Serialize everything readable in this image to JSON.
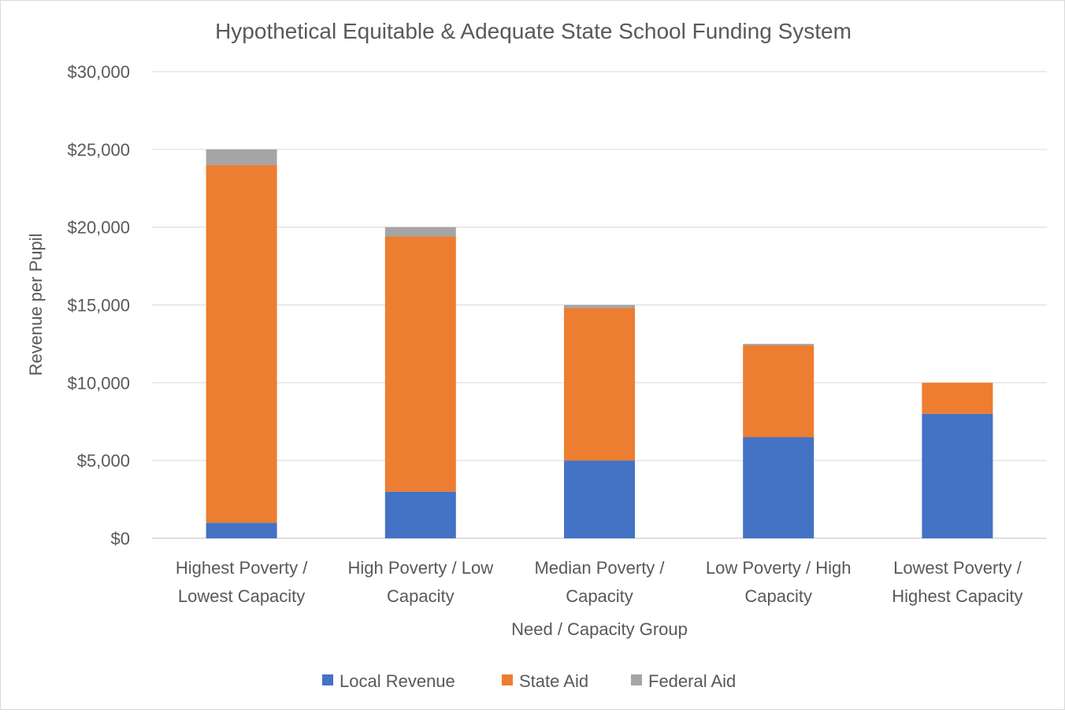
{
  "chart_data": {
    "type": "bar",
    "stacked": true,
    "title": "Hypothetical Equitable & Adequate State School Funding System",
    "xlabel": "Need / Capacity Group",
    "ylabel": "Revenue per Pupil",
    "ylim": [
      0,
      30000
    ],
    "yticks": [
      0,
      5000,
      10000,
      15000,
      20000,
      25000,
      30000
    ],
    "ytick_labels": [
      "$0",
      "$5,000",
      "$10,000",
      "$15,000",
      "$20,000",
      "$25,000",
      "$30,000"
    ],
    "grid": true,
    "legend_position": "bottom",
    "categories": [
      [
        "Highest Poverty /",
        "Lowest Capacity"
      ],
      [
        "High Poverty / Low",
        "Capacity"
      ],
      [
        "Median Poverty /",
        "Capacity"
      ],
      [
        "Low Poverty / High",
        "Capacity"
      ],
      [
        "Lowest Poverty /",
        "Highest Capacity"
      ]
    ],
    "series": [
      {
        "name": "Local Revenue",
        "color": "#4472C4",
        "values": [
          1000,
          3000,
          5000,
          6500,
          8000
        ]
      },
      {
        "name": "State Aid",
        "color": "#ED7D31",
        "values": [
          23000,
          16400,
          9800,
          5900,
          2000
        ]
      },
      {
        "name": "Federal Aid",
        "color": "#A5A5A5",
        "values": [
          1000,
          600,
          200,
          100,
          0
        ]
      }
    ]
  }
}
